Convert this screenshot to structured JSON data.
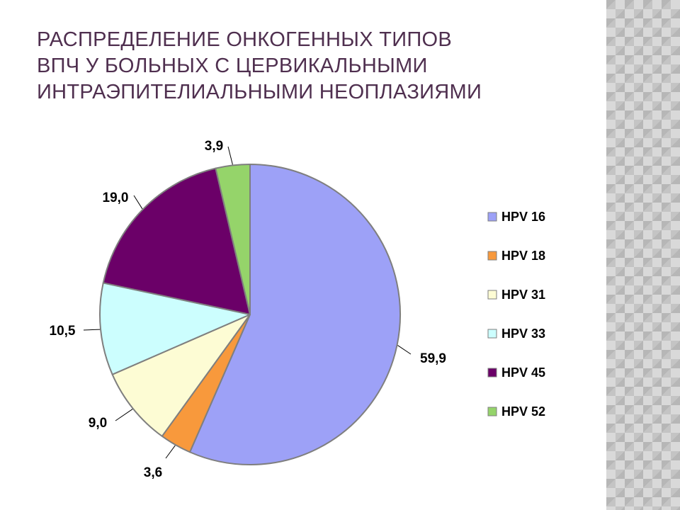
{
  "slide": {
    "title_lines": [
      "РАСПРЕДЕЛЕНИЕ ОНКОГЕННЫХ ТИПОВ",
      "ВПЧ У БОЛЬНЫХ С  ЦЕРВИКАЛЬНЫМИ",
      "ИНТРАЭПИТЕЛИАЛЬНЫМИ НЕОПЛАЗИЯМИ"
    ]
  },
  "chart_data": {
    "type": "pie",
    "categories": [
      "HPV 16",
      "HPV 18",
      "HPV 31",
      "HPV 33",
      "HPV 45",
      "HPV 52"
    ],
    "values": [
      59.9,
      3.6,
      9.0,
      10.5,
      19.0,
      3.9
    ],
    "data_labels": [
      "59,9",
      "3,6",
      "9,0",
      "10,5",
      "19,0",
      "3,9"
    ],
    "colors": [
      "#9da1f7",
      "#f8993c",
      "#fdfcd4",
      "#ccfefe",
      "#6b0068",
      "#95d46a"
    ],
    "legend_position": "right",
    "start": "12 o'clock",
    "direction": "clockwise"
  }
}
